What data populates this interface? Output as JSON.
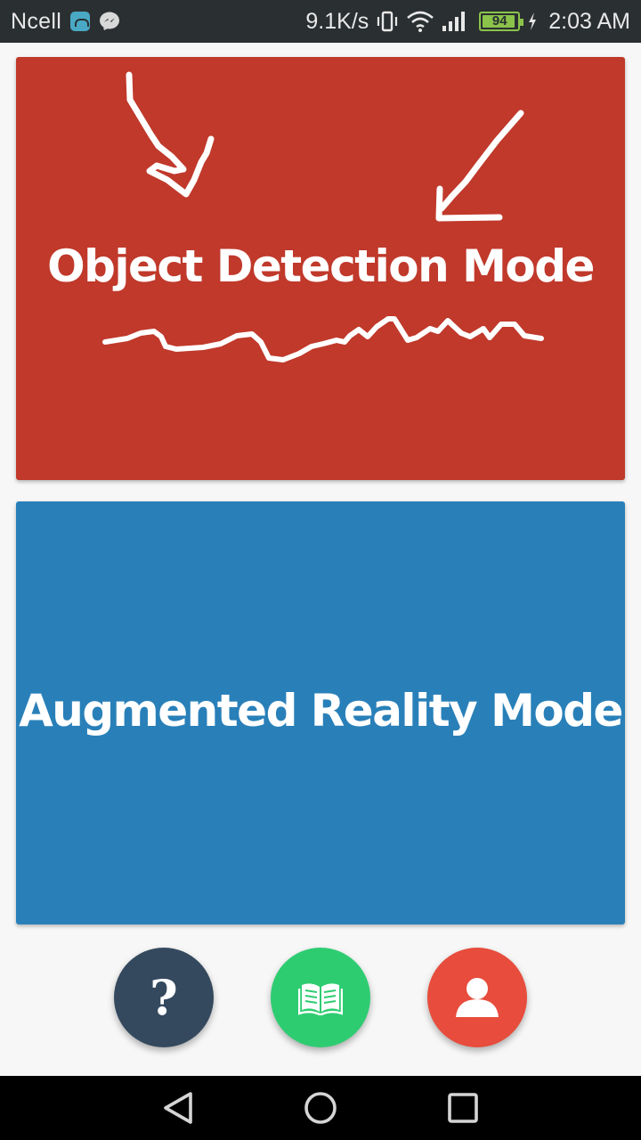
{
  "status_bar": {
    "carrier": "Ncell",
    "network_speed": "9.1K/s",
    "battery_level": "94",
    "battery_fraction": 0.94,
    "time": "2:03 AM",
    "icons": [
      "android-debug-icon",
      "messenger-icon",
      "vibrate-icon",
      "wifi-icon",
      "signal-icon",
      "battery-icon",
      "charging-icon"
    ]
  },
  "cards": {
    "object_detection": {
      "title": "Object Detection Mode",
      "color": "#c0392b"
    },
    "augmented_reality": {
      "title": "Augmented Reality Mode",
      "color": "#2980b9"
    }
  },
  "fabs": {
    "help": {
      "icon": "question-mark-icon",
      "glyph": "?",
      "color": "#34495e"
    },
    "guide": {
      "icon": "open-book-icon",
      "color": "#2ecc71"
    },
    "profile": {
      "icon": "user-icon",
      "color": "#e74c3c"
    }
  },
  "nav_bar": {
    "icons": [
      "back-icon",
      "home-icon",
      "recent-apps-icon"
    ]
  }
}
